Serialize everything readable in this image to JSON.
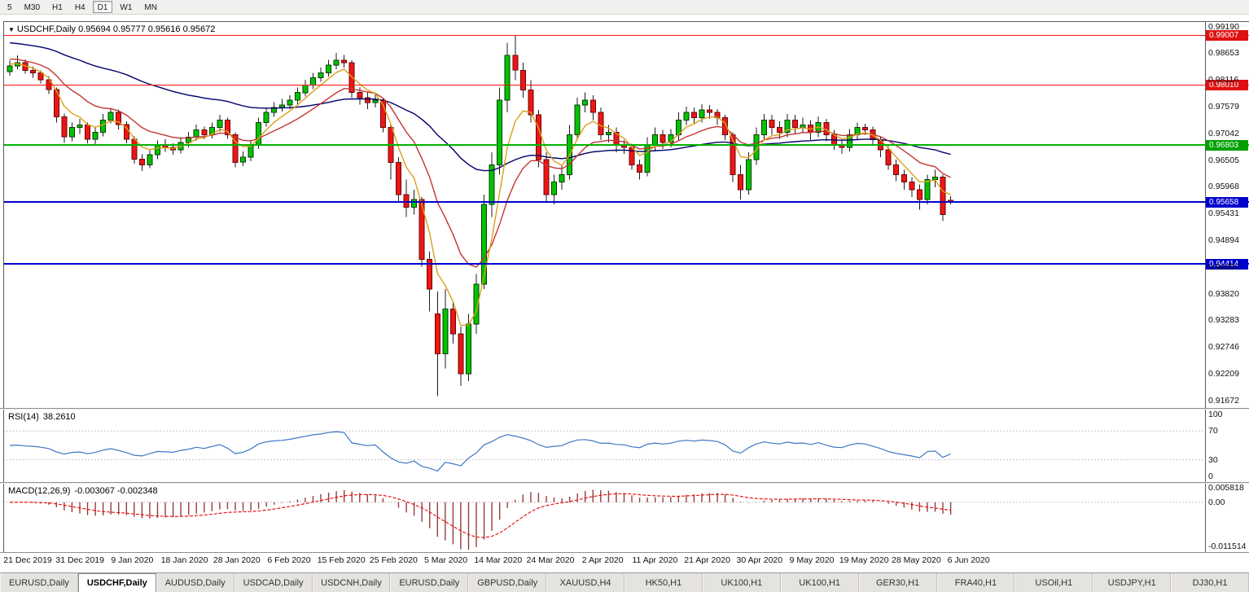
{
  "toolbar": {
    "timeframes": [
      {
        "label": "5",
        "active": false
      },
      {
        "label": "M30",
        "active": false
      },
      {
        "label": "H1",
        "active": false
      },
      {
        "label": "H4",
        "active": false
      },
      {
        "label": "D1",
        "active": true
      },
      {
        "label": "W1",
        "active": false
      },
      {
        "label": "MN",
        "active": false
      }
    ]
  },
  "chart": {
    "dropdown_icon": "▼",
    "symbol_period": "USDCHF,Daily",
    "ohlc": "0.95694 0.95777 0.95616 0.95672"
  },
  "price_axis": {
    "labels": [
      "0.99190",
      "0.98653",
      "0.98116",
      "0.97579",
      "0.97042",
      "0.96505",
      "0.95968",
      "0.95431",
      "0.94894",
      "0.94357",
      "0.93820",
      "0.93283",
      "0.92746",
      "0.92209",
      "0.91672"
    ]
  },
  "rsi": {
    "label": "RSI(14)",
    "value": "38.2610",
    "color": "#3b78c3",
    "scale_labels": [
      "100",
      "70",
      "30",
      "0"
    ]
  },
  "macd": {
    "label": "MACD(12,26,9)",
    "values": "-0.003067 -0.002348",
    "histogram_color": "#993b3b",
    "signal_color": "#e80000",
    "scale_labels": [
      "0.005818",
      "0.00",
      "-0.011514"
    ]
  },
  "date_axis": [
    "21 Dec 2019",
    "31 Dec 2019",
    "9 Jan 2020",
    "18 Jan 2020",
    "28 Jan 2020",
    "6 Feb 2020",
    "15 Feb 2020",
    "25 Feb 2020",
    "5 Mar 2020",
    "14 Mar 2020",
    "24 Mar 2020",
    "2 Apr 2020",
    "11 Apr 2020",
    "21 Apr 2020",
    "30 Apr 2020",
    "9 May 2020",
    "19 May 2020",
    "28 May 2020",
    "6 Jun 2020"
  ],
  "tabs": [
    {
      "label": "EURUSD,Daily",
      "active": false
    },
    {
      "label": "USDCHF,Daily",
      "active": true
    },
    {
      "label": "AUDUSD,Daily",
      "active": false
    },
    {
      "label": "USDCAD,Daily",
      "active": false
    },
    {
      "label": "USDCNH,Daily",
      "active": false
    },
    {
      "label": "EURUSD,Daily",
      "active": false
    },
    {
      "label": "GBPUSD,Daily",
      "active": false
    },
    {
      "label": "XAUUSD,H4",
      "active": false
    },
    {
      "label": "HK50,H1",
      "active": false
    },
    {
      "label": "UK100,H1",
      "active": false
    },
    {
      "label": "UK100,H1",
      "active": false
    },
    {
      "label": "GER30,H1",
      "active": false
    },
    {
      "label": "FRA40,H1",
      "active": false
    },
    {
      "label": "USOil,H1",
      "active": false
    },
    {
      "label": "USDJPY,H1",
      "active": false
    },
    {
      "label": "DJ30,H1",
      "active": false
    }
  ],
  "chart_data": {
    "type": "candlestick",
    "symbol": "USDCHF",
    "period": "Daily",
    "up_color": "#00c400",
    "down_color": "#ef1515",
    "up_border": "#063a06",
    "down_border": "#6b0606",
    "price_range": {
      "top": 0.9928,
      "bottom": 0.9152
    },
    "rsi_period": 14,
    "macd_params": [
      12,
      26,
      9
    ],
    "moving_averages": [
      {
        "name": "slow-ma",
        "period": 50,
        "seed": 0.9888,
        "color": "#00006b"
      },
      {
        "name": "medium-ma",
        "period": 13,
        "seed": 0.9856,
        "color": "#c23535"
      },
      {
        "name": "fast-ma",
        "period": 5,
        "seed": 0.9845,
        "color": "#d9a018"
      }
    ],
    "horizontal_lines": [
      {
        "price": 0.99007,
        "color": "#ff1111",
        "badge": "#dd1111",
        "width": 1,
        "arrow": false
      },
      {
        "price": 0.9801,
        "color": "#ff1111",
        "badge": "#dd1111",
        "width": 1,
        "arrow": false
      },
      {
        "price": 0.96803,
        "color": "#00b300",
        "badge": "#00a000",
        "width": 2,
        "arrow": true
      },
      {
        "price": 0.95658,
        "color": "#0202cc",
        "badge": "#0000cc",
        "width": 2,
        "arrow": true
      },
      {
        "price": 0.94414,
        "color": "#0202cc",
        "badge": "#0000cc",
        "width": 2,
        "arrow": true
      }
    ],
    "candles": [
      [
        "2019.12.19",
        0.9828,
        0.9851,
        0.982,
        0.984
      ],
      [
        "2019.12.20",
        0.984,
        0.9861,
        0.9833,
        0.9846
      ],
      [
        "2019.12.23",
        0.9846,
        0.9853,
        0.9824,
        0.9831
      ],
      [
        "2019.12.24",
        0.9831,
        0.9839,
        0.9816,
        0.9826
      ],
      [
        "2019.12.26",
        0.9826,
        0.9831,
        0.9804,
        0.9812
      ],
      [
        "2019.12.27",
        0.9812,
        0.9819,
        0.9783,
        0.9792
      ],
      [
        "2019.12.30",
        0.9792,
        0.9796,
        0.9726,
        0.9737
      ],
      [
        "2019.12.31",
        0.9737,
        0.9744,
        0.9685,
        0.9697
      ],
      [
        "2020.01.02",
        0.9697,
        0.9726,
        0.9688,
        0.9716
      ],
      [
        "2020.01.03",
        0.9716,
        0.9733,
        0.9703,
        0.9721
      ],
      [
        "2020.01.06",
        0.9721,
        0.9726,
        0.9684,
        0.9692
      ],
      [
        "2020.01.07",
        0.9692,
        0.9716,
        0.9682,
        0.9706
      ],
      [
        "2020.01.08",
        0.9706,
        0.9743,
        0.9698,
        0.9731
      ],
      [
        "2020.01.09",
        0.9731,
        0.9755,
        0.9724,
        0.9746
      ],
      [
        "2020.01.10",
        0.9746,
        0.9752,
        0.9712,
        0.9722
      ],
      [
        "2020.01.13",
        0.9722,
        0.9728,
        0.9684,
        0.9692
      ],
      [
        "2020.01.14",
        0.9692,
        0.9698,
        0.9643,
        0.9652
      ],
      [
        "2020.01.15",
        0.9652,
        0.9662,
        0.9628,
        0.9641
      ],
      [
        "2020.01.16",
        0.9641,
        0.967,
        0.9634,
        0.9661
      ],
      [
        "2020.01.17",
        0.9661,
        0.969,
        0.9652,
        0.9681
      ],
      [
        "2020.01.20",
        0.9681,
        0.9692,
        0.9667,
        0.9676
      ],
      [
        "2020.01.21",
        0.9676,
        0.9684,
        0.9661,
        0.9671
      ],
      [
        "2020.01.22",
        0.9671,
        0.9696,
        0.9664,
        0.9686
      ],
      [
        "2020.01.23",
        0.9686,
        0.9707,
        0.9676,
        0.9696
      ],
      [
        "2020.01.24",
        0.9696,
        0.9722,
        0.9689,
        0.9711
      ],
      [
        "2020.01.27",
        0.9711,
        0.9718,
        0.9692,
        0.9701
      ],
      [
        "2020.01.28",
        0.9701,
        0.9726,
        0.9694,
        0.9716
      ],
      [
        "2020.01.29",
        0.9716,
        0.9741,
        0.9708,
        0.9731
      ],
      [
        "2020.01.30",
        0.9731,
        0.9736,
        0.9693,
        0.9701
      ],
      [
        "2020.01.31",
        0.9701,
        0.9706,
        0.9636,
        0.9646
      ],
      [
        "2020.02.03",
        0.9646,
        0.9668,
        0.9638,
        0.9656
      ],
      [
        "2020.02.04",
        0.9656,
        0.9691,
        0.9648,
        0.9681
      ],
      [
        "2020.02.05",
        0.9681,
        0.9736,
        0.9673,
        0.9726
      ],
      [
        "2020.02.06",
        0.9726,
        0.9756,
        0.9718,
        0.9746
      ],
      [
        "2020.02.07",
        0.9746,
        0.9767,
        0.9737,
        0.9756
      ],
      [
        "2020.02.10",
        0.9756,
        0.9773,
        0.9748,
        0.9761
      ],
      [
        "2020.02.11",
        0.9761,
        0.9781,
        0.9753,
        0.9771
      ],
      [
        "2020.02.12",
        0.9771,
        0.9796,
        0.9763,
        0.9786
      ],
      [
        "2020.02.13",
        0.9786,
        0.9812,
        0.9778,
        0.9801
      ],
      [
        "2020.02.14",
        0.9801,
        0.9826,
        0.9793,
        0.9816
      ],
      [
        "2020.02.17",
        0.9816,
        0.9836,
        0.9808,
        0.9826
      ],
      [
        "2020.02.18",
        0.9826,
        0.9852,
        0.9818,
        0.9841
      ],
      [
        "2020.02.19",
        0.9841,
        0.9866,
        0.9833,
        0.9851
      ],
      [
        "2020.02.20",
        0.9851,
        0.9862,
        0.9836,
        0.9846
      ],
      [
        "2020.02.21",
        0.9846,
        0.9851,
        0.9776,
        0.9786
      ],
      [
        "2020.02.24",
        0.9786,
        0.9797,
        0.9762,
        0.9776
      ],
      [
        "2020.02.25",
        0.9776,
        0.9786,
        0.9753,
        0.9766
      ],
      [
        "2020.02.26",
        0.9766,
        0.9784,
        0.9756,
        0.9771
      ],
      [
        "2020.02.27",
        0.9771,
        0.9776,
        0.9706,
        0.9716
      ],
      [
        "2020.02.28",
        0.9716,
        0.9721,
        0.9611,
        0.9646
      ],
      [
        "2020.03.02",
        0.9646,
        0.9656,
        0.9566,
        0.9581
      ],
      [
        "2020.03.03",
        0.9581,
        0.9611,
        0.9536,
        0.9556
      ],
      [
        "2020.03.04",
        0.9556,
        0.9591,
        0.9541,
        0.9571
      ],
      [
        "2020.03.05",
        0.9571,
        0.9576,
        0.9436,
        0.9451
      ],
      [
        "2020.03.06",
        0.9451,
        0.9466,
        0.9346,
        0.9391
      ],
      [
        "2020.03.09",
        0.9341,
        0.9386,
        0.9176,
        0.9261
      ],
      [
        "2020.03.10",
        0.9261,
        0.9391,
        0.9231,
        0.9351
      ],
      [
        "2020.03.11",
        0.9351,
        0.9366,
        0.9281,
        0.9301
      ],
      [
        "2020.03.12",
        0.9301,
        0.9316,
        0.9196,
        0.9221
      ],
      [
        "2020.03.13",
        0.9221,
        0.9341,
        0.9206,
        0.9321
      ],
      [
        "2020.03.16",
        0.9321,
        0.9421,
        0.9301,
        0.9401
      ],
      [
        "2020.03.17",
        0.9401,
        0.9581,
        0.9391,
        0.9561
      ],
      [
        "2020.03.18",
        0.9561,
        0.9666,
        0.9536,
        0.9641
      ],
      [
        "2020.03.19",
        0.9641,
        0.9796,
        0.9621,
        0.9771
      ],
      [
        "2020.03.20",
        0.9771,
        0.9886,
        0.9746,
        0.9861
      ],
      [
        "2020.03.23",
        0.9861,
        0.9901,
        0.9811,
        0.9831
      ],
      [
        "2020.03.24",
        0.9831,
        0.9846,
        0.9776,
        0.9791
      ],
      [
        "2020.03.25",
        0.9791,
        0.9811,
        0.9726,
        0.9741
      ],
      [
        "2020.03.26",
        0.9741,
        0.9751,
        0.9636,
        0.9651
      ],
      [
        "2020.03.27",
        0.9651,
        0.9666,
        0.9566,
        0.9581
      ],
      [
        "2020.03.30",
        0.9581,
        0.9621,
        0.9561,
        0.9606
      ],
      [
        "2020.03.31",
        0.9606,
        0.9641,
        0.9591,
        0.9621
      ],
      [
        "2020.04.01",
        0.9621,
        0.9721,
        0.9611,
        0.9701
      ],
      [
        "2020.04.02",
        0.9701,
        0.9776,
        0.9691,
        0.9761
      ],
      [
        "2020.04.03",
        0.9761,
        0.9786,
        0.9746,
        0.9771
      ],
      [
        "2020.04.06",
        0.9771,
        0.9781,
        0.9731,
        0.9746
      ],
      [
        "2020.04.07",
        0.9746,
        0.9756,
        0.9691,
        0.9701
      ],
      [
        "2020.04.08",
        0.9701,
        0.9721,
        0.9686,
        0.9706
      ],
      [
        "2020.04.09",
        0.9706,
        0.9716,
        0.9666,
        0.9681
      ],
      [
        "2020.04.10",
        0.9681,
        0.9691,
        0.9663,
        0.9676
      ],
      [
        "2020.04.13",
        0.9676,
        0.9683,
        0.9631,
        0.9641
      ],
      [
        "2020.04.14",
        0.9641,
        0.9651,
        0.9611,
        0.9626
      ],
      [
        "2020.04.15",
        0.9626,
        0.9696,
        0.9618,
        0.9681
      ],
      [
        "2020.04.16",
        0.9681,
        0.9716,
        0.9668,
        0.9701
      ],
      [
        "2020.04.17",
        0.9701,
        0.9711,
        0.9673,
        0.9686
      ],
      [
        "2020.04.20",
        0.9686,
        0.9713,
        0.9676,
        0.9701
      ],
      [
        "2020.04.21",
        0.9701,
        0.9746,
        0.9691,
        0.9731
      ],
      [
        "2020.04.22",
        0.9731,
        0.9758,
        0.9721,
        0.9746
      ],
      [
        "2020.04.23",
        0.9746,
        0.9756,
        0.9723,
        0.9736
      ],
      [
        "2020.04.24",
        0.9736,
        0.9763,
        0.9726,
        0.9751
      ],
      [
        "2020.04.27",
        0.9751,
        0.9761,
        0.9733,
        0.9746
      ],
      [
        "2020.04.28",
        0.9746,
        0.9753,
        0.9721,
        0.9736
      ],
      [
        "2020.04.29",
        0.9736,
        0.9741,
        0.9691,
        0.9701
      ],
      [
        "2020.04.30",
        0.9701,
        0.9706,
        0.9606,
        0.9621
      ],
      [
        "2020.05.01",
        0.9621,
        0.9641,
        0.9571,
        0.9591
      ],
      [
        "2020.05.04",
        0.9591,
        0.9666,
        0.9581,
        0.9651
      ],
      [
        "2020.05.05",
        0.9651,
        0.9716,
        0.9641,
        0.9701
      ],
      [
        "2020.05.06",
        0.9701,
        0.9743,
        0.9691,
        0.9731
      ],
      [
        "2020.05.07",
        0.9731,
        0.9741,
        0.9701,
        0.9716
      ],
      [
        "2020.05.08",
        0.9716,
        0.9728,
        0.9693,
        0.9706
      ],
      [
        "2020.05.11",
        0.9706,
        0.9743,
        0.9696,
        0.9731
      ],
      [
        "2020.05.12",
        0.9731,
        0.9741,
        0.9703,
        0.9716
      ],
      [
        "2020.05.13",
        0.9716,
        0.9736,
        0.9706,
        0.9721
      ],
      [
        "2020.05.14",
        0.9721,
        0.9731,
        0.9691,
        0.9706
      ],
      [
        "2020.05.15",
        0.9706,
        0.9738,
        0.9696,
        0.9726
      ],
      [
        "2020.05.18",
        0.9726,
        0.9733,
        0.9688,
        0.9701
      ],
      [
        "2020.05.19",
        0.9701,
        0.9711,
        0.9671,
        0.9681
      ],
      [
        "2020.05.20",
        0.9681,
        0.9691,
        0.9663,
        0.9676
      ],
      [
        "2020.05.21",
        0.9676,
        0.9713,
        0.9668,
        0.9701
      ],
      [
        "2020.05.22",
        0.9701,
        0.9726,
        0.9691,
        0.9716
      ],
      [
        "2020.05.25",
        0.9716,
        0.9723,
        0.9701,
        0.9711
      ],
      [
        "2020.05.26",
        0.9711,
        0.9718,
        0.9681,
        0.9691
      ],
      [
        "2020.05.27",
        0.9691,
        0.9698,
        0.9656,
        0.9671
      ],
      [
        "2020.05.28",
        0.9671,
        0.9678,
        0.9631,
        0.9641
      ],
      [
        "2020.05.29",
        0.9641,
        0.9651,
        0.9608,
        0.9621
      ],
      [
        "2020.06.01",
        0.9621,
        0.9631,
        0.9591,
        0.9606
      ],
      [
        "2020.06.02",
        0.9606,
        0.9616,
        0.9576,
        0.9591
      ],
      [
        "2020.06.03",
        0.9591,
        0.9601,
        0.9551,
        0.9571
      ],
      [
        "2020.06.04",
        0.9571,
        0.9621,
        0.9561,
        0.9611
      ],
      [
        "2020.06.05",
        0.9611,
        0.9631,
        0.9596,
        0.9616
      ],
      [
        "2020.06.08",
        0.9616,
        0.9621,
        0.9528,
        0.9541
      ],
      [
        "2020.06.09",
        0.95694,
        0.95777,
        0.95616,
        0.95672
      ]
    ]
  }
}
